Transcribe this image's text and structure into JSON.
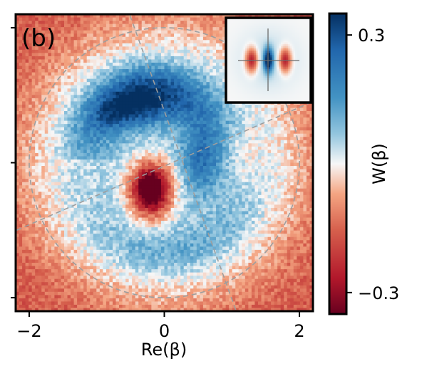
{
  "panel_label": "(b)",
  "chart_data": {
    "type": "heatmap",
    "title": "",
    "xlabel": "Re(β)",
    "ylabel": "",
    "xlim": [
      -2.2,
      2.2
    ],
    "ylim": [
      -2.2,
      2.2
    ],
    "x_ticks": [
      -2,
      0,
      2
    ],
    "x_tick_labels": [
      "−2",
      "0",
      "2"
    ],
    "y_ticks_unlabeled": [
      -2,
      0,
      2
    ],
    "colorbar": {
      "label": "W(β)",
      "range": [
        -0.35,
        0.35
      ],
      "ticks": [
        0.3,
        -0.3
      ],
      "tick_labels": [
        "0.3",
        "−0.3"
      ],
      "colormap": "RdBu",
      "colors": {
        "low": "#67001f",
        "mid": "#f7f7f7",
        "high": "#053061"
      }
    },
    "features": {
      "dashed_circle_radius": 2.0,
      "dashed_guide_lines": [
        {
          "from": [
            -0.55,
            2.3
          ],
          "to": [
            1.1,
            -2.3
          ]
        },
        {
          "from": [
            -2.3,
            -1.05
          ],
          "to": [
            2.3,
            0.95
          ]
        }
      ],
      "negative_lobe_center": [
        -0.2,
        -0.4
      ],
      "negative_lobe_min": -0.33,
      "positive_arc_peak": [
        -0.45,
        0.75
      ],
      "positive_arc_max": 0.31,
      "guide_line_color": "#9e9e9e"
    },
    "inset": {
      "description_visible": "theory Wigner function",
      "lobes": [
        {
          "x": -0.9,
          "sign": "negative"
        },
        {
          "x": 0.0,
          "sign": "positive"
        },
        {
          "x": 0.9,
          "sign": "negative"
        }
      ]
    }
  }
}
